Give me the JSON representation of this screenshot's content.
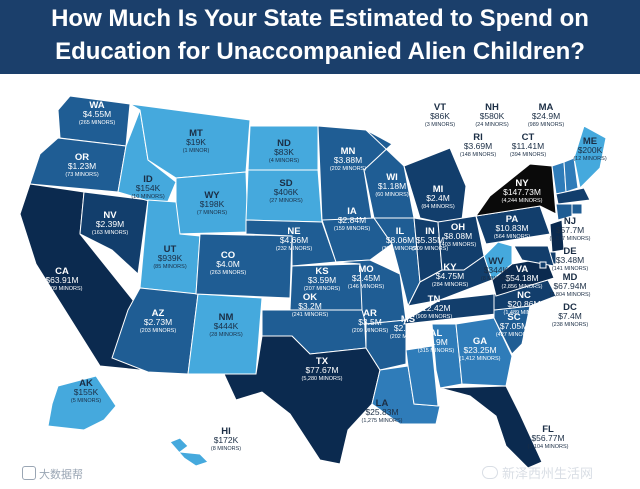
{
  "title_line1": "How Much Is Your State Estimated to Spend on",
  "title_line2": "Education for Unaccompanied Alien Children?",
  "colors": {
    "header": "#1b3f6b",
    "tier1": "#45a9dd",
    "tier2": "#2f7cb9",
    "tier3": "#1f5d94",
    "tier4": "#123e6c",
    "tier5": "#0b2a4f",
    "highest": "#0a0a0a",
    "border": "#ffffff"
  },
  "states": [
    {
      "abbr": "WA",
      "amount": "$4.55M",
      "minors": "(265 MINORS)"
    },
    {
      "abbr": "OR",
      "amount": "$1.23M",
      "minors": "(73 MINORS)"
    },
    {
      "abbr": "CA",
      "amount": "$63.91M",
      "minors": "(3,909 MINORS)"
    },
    {
      "abbr": "NV",
      "amount": "$2.39M",
      "minors": "(163 MINORS)"
    },
    {
      "abbr": "ID",
      "amount": "$154K",
      "minors": "(10 MINORS)"
    },
    {
      "abbr": "MT",
      "amount": "$19K",
      "minors": "(1 MINOR)"
    },
    {
      "abbr": "WY",
      "amount": "$198K",
      "minors": "(7 MINORS)"
    },
    {
      "abbr": "UT",
      "amount": "$939K",
      "minors": "(85 MINORS)"
    },
    {
      "abbr": "AZ",
      "amount": "$2.73M",
      "minors": "(203 MINORS)"
    },
    {
      "abbr": "NM",
      "amount": "$444K",
      "minors": "(28 MINORS)"
    },
    {
      "abbr": "CO",
      "amount": "$4.0M",
      "minors": "(263 MINORS)"
    },
    {
      "abbr": "ND",
      "amount": "$83K",
      "minors": "(4 MINORS)"
    },
    {
      "abbr": "SD",
      "amount": "$406K",
      "minors": "(27 MINORS)"
    },
    {
      "abbr": "NE",
      "amount": "$4.66M",
      "minors": "(232 MINORS)"
    },
    {
      "abbr": "KS",
      "amount": "$3.59M",
      "minors": "(207 MINORS)"
    },
    {
      "abbr": "OK",
      "amount": "$3.2M",
      "minors": "(241 MINORS)"
    },
    {
      "abbr": "TX",
      "amount": "$77.67M",
      "minors": "(5,280 MINORS)"
    },
    {
      "abbr": "MN",
      "amount": "$3.88M",
      "minors": "(202 MINORS)"
    },
    {
      "abbr": "IA",
      "amount": "$2.84M",
      "minors": "(159 MINORS)"
    },
    {
      "abbr": "MO",
      "amount": "$2.45M",
      "minors": "(146 MINORS)"
    },
    {
      "abbr": "AR",
      "amount": "$3.5M",
      "minors": "(209 MINORS)"
    },
    {
      "abbr": "LA",
      "amount": "$25.83M",
      "minors": "(1,275 MINORS)"
    },
    {
      "abbr": "WI",
      "amount": "$1.18M",
      "minors": "(60 MINORS)"
    },
    {
      "abbr": "IL",
      "amount": "$8.06M",
      "minors": "(377 MINORS)"
    },
    {
      "abbr": "MI",
      "amount": "$2.4M",
      "minors": "(84 MINORS)"
    },
    {
      "abbr": "IN",
      "amount": "$5.35M",
      "minors": "(209 MINORS)"
    },
    {
      "abbr": "OH",
      "amount": "$8.08M",
      "minors": "(403 MINORS)"
    },
    {
      "abbr": "KY",
      "amount": "$4.75M",
      "minors": "(284 MINORS)"
    },
    {
      "abbr": "TN",
      "amount": "$12.42M",
      "minors": "(909 MINORS)"
    },
    {
      "abbr": "MS",
      "amount": "$2.94M",
      "minors": "(202 MINORS)"
    },
    {
      "abbr": "AL",
      "amount": "$7.9M",
      "minors": "(315 MINORS)"
    },
    {
      "abbr": "GA",
      "amount": "$23.25M",
      "minors": "(1,412 MINORS)"
    },
    {
      "abbr": "FL",
      "amount": "$56.77M",
      "minors": "(3,104 MINORS)"
    },
    {
      "abbr": "SC",
      "amount": "$7.05M",
      "minors": "(427 MINORS)"
    },
    {
      "abbr": "NC",
      "amount": "$20.86M",
      "minors": "(1,489 MINORS)"
    },
    {
      "abbr": "VA",
      "amount": "$54.18M",
      "minors": "(2,856 MINORS)"
    },
    {
      "abbr": "WV",
      "amount": "$344K",
      "minors": "(8 MINORS)"
    },
    {
      "abbr": "PA",
      "amount": "$10.83M",
      "minors": "(564 MINORS)"
    },
    {
      "abbr": "NY",
      "amount": "$147.73M",
      "minors": "(4,244 MINORS)"
    },
    {
      "abbr": "NJ",
      "amount": "$57.7M",
      "minors": "(1,877 MINORS)"
    },
    {
      "abbr": "DE",
      "amount": "$3.48M",
      "minors": "(141 MINORS)"
    },
    {
      "abbr": "MD",
      "amount": "$67.94M",
      "minors": "(2,804 MINORS)"
    },
    {
      "abbr": "DC",
      "amount": "$7.4M",
      "minors": "(238 MINORS)"
    },
    {
      "abbr": "VT",
      "amount": "$86K",
      "minors": "(3 MINORS)"
    },
    {
      "abbr": "NH",
      "amount": "$580K",
      "minors": "(24 MINORS)"
    },
    {
      "abbr": "MA",
      "amount": "$24.9M",
      "minors": "(989 MINORS)"
    },
    {
      "abbr": "RI",
      "amount": "$3.69M",
      "minors": "(148 MINORS)"
    },
    {
      "abbr": "CT",
      "amount": "$11.41M",
      "minors": "(394 MINORS)"
    },
    {
      "abbr": "ME",
      "amount": "$200K",
      "minors": "(12 MINORS)"
    },
    {
      "abbr": "AK",
      "amount": "$155K",
      "minors": "(5 MINORS)"
    },
    {
      "abbr": "HI",
      "amount": "$172K",
      "minors": "(8 MINORS)"
    }
  ],
  "watermark_left": "大数据帮",
  "watermark_right": "新泽西州生活网"
}
